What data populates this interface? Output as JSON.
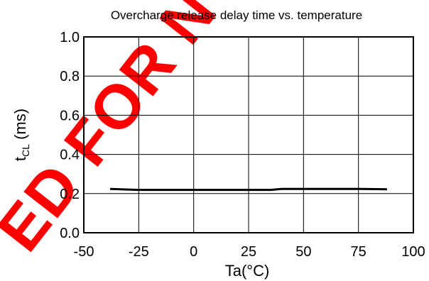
{
  "colors": {
    "line": "#000000",
    "grid": "#000000",
    "watermark": "#ff0000"
  },
  "watermark": {
    "text": "ED FOR N"
  },
  "chart_data": {
    "type": "line",
    "title": "Overcharge release delay time vs. temperature",
    "xlabel": "Ta(°C)",
    "ylabel_main": "t",
    "ylabel_sub": "CL",
    "ylabel_unit": " (ms)",
    "xlim": [
      -50,
      100
    ],
    "ylim": [
      0.0,
      1.0
    ],
    "xticks": [
      -50,
      -25,
      0,
      25,
      50,
      75,
      100
    ],
    "xtick_labels": [
      "-50",
      "-25",
      "0",
      "25",
      "50",
      "75",
      "100"
    ],
    "yticks": [
      0.0,
      0.2,
      0.4,
      0.6,
      0.8,
      1.0
    ],
    "ytick_labels": [
      "0.0",
      "0.2",
      "0.4",
      "0.6",
      "0.8",
      "1.0"
    ],
    "grid": true,
    "series": [
      {
        "x": [
          -38,
          -25,
          0,
          25,
          35,
          40,
          50,
          75,
          88
        ],
        "y": [
          0.224,
          0.219,
          0.219,
          0.219,
          0.219,
          0.224,
          0.224,
          0.224,
          0.222
        ]
      }
    ]
  }
}
